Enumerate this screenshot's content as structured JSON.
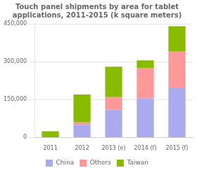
{
  "chart_data": {
    "type": "bar",
    "title": "Touch panel shipments by area for tablet\napplications, 2011-2015 (k square meters)",
    "categories": [
      "2011",
      "2012",
      "2013 (e)",
      "2014 (f)",
      "2015 (f)"
    ],
    "series": [
      {
        "name": "China",
        "color": "#aaaaee",
        "values": [
          0,
          50000,
          110000,
          155000,
          195000
        ]
      },
      {
        "name": "Others",
        "color": "#ff9999",
        "values": [
          0,
          10000,
          50000,
          120000,
          145000
        ]
      },
      {
        "name": "Taiwan",
        "color": "#88bb00",
        "values": [
          25000,
          110000,
          120000,
          30000,
          100000
        ]
      }
    ],
    "stacked": true,
    "ylim": [
      0,
      450000
    ],
    "yticks": [
      0,
      {
        "value": 150000,
        "label": "150,000"
      },
      {
        "value": 300000,
        "label": "300,000"
      },
      {
        "value": 450000,
        "label": "450,000"
      }
    ],
    "grid": true,
    "legend": "bottom"
  }
}
